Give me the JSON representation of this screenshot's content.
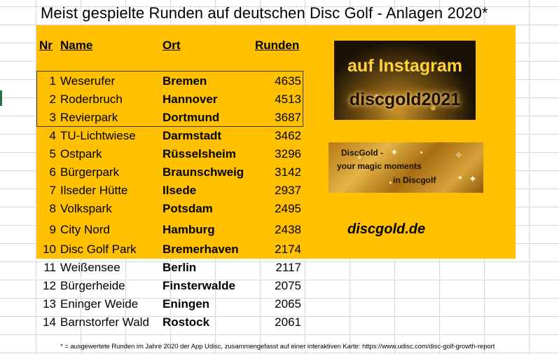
{
  "title": "Meist gespielte Runden auf deutschen Disc Golf - Anlagen 2020*",
  "headers": {
    "nr": "Nr",
    "name": "Name",
    "ort": "Ort",
    "runden": "Runden"
  },
  "rows": [
    {
      "nr": "1",
      "name": "Weserufer",
      "ort": "Bremen",
      "runden": "4635"
    },
    {
      "nr": "2",
      "name": "Roderbruch",
      "ort": "Hannover",
      "runden": "4513"
    },
    {
      "nr": "3",
      "name": "Revierpark",
      "ort": "Dortmund",
      "runden": "3687"
    },
    {
      "nr": "4",
      "name": "TU-Lichtwiese",
      "ort": "Darmstadt",
      "runden": "3462"
    },
    {
      "nr": "5",
      "name": "Ostpark",
      "ort": "Rüsselsheim",
      "runden": "3296"
    },
    {
      "nr": "6",
      "name": "Bürgerpark",
      "ort": "Braunschweig",
      "runden": "3142"
    },
    {
      "nr": "7",
      "name": "Ilseder Hütte",
      "ort": "Ilsede",
      "runden": "2937"
    },
    {
      "nr": "8",
      "name": "Volkspark",
      "ort": "Potsdam",
      "runden": "2495"
    },
    {
      "nr": "9",
      "name": "City Nord",
      "ort": "Hamburg",
      "runden": "2438"
    },
    {
      "nr": "10",
      "name": "Disc Golf Park",
      "ort": "Bremerhaven",
      "runden": "2174"
    },
    {
      "nr": "11",
      "name": "Weißensee",
      "ort": "Berlin",
      "runden": "2117"
    },
    {
      "nr": "12",
      "name": "Bürgerheide",
      "ort": "Finsterwalde",
      "runden": "2075"
    },
    {
      "nr": "13",
      "name": "Eninger Weide",
      "ort": "Eningen",
      "runden": "2065"
    },
    {
      "nr": "14",
      "name": "Barnstorfer Wald",
      "ort": "Rostock",
      "runden": "2061"
    }
  ],
  "instagram": {
    "line1": "auf Instagram",
    "line2": "discgold2021"
  },
  "magic": {
    "line1": "DiscGold -",
    "line2": "your magic moments",
    "line3": "in Discgolf"
  },
  "website": "discgold.de",
  "footnote": "* = ausgewertete Runden im Jahre 2020 der App Udisc, zusammengefasst auf einer interaktiven Karte: https://www.udisc.com/disc-golf-growth-report",
  "colors": {
    "highlight": "#ffc000",
    "gold": "#ffd23a"
  }
}
